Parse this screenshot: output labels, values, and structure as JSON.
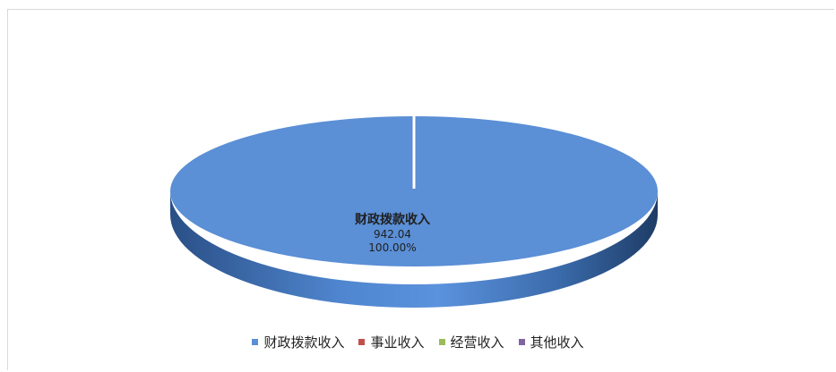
{
  "chart_data": {
    "type": "pie",
    "categories": [
      "财政拨款收入",
      "事业收入",
      "经营收入",
      "其他收入"
    ],
    "values": [
      942.04,
      0,
      0,
      0
    ],
    "percent_labels": [
      "100.00%",
      "",
      "",
      ""
    ],
    "value_labels": [
      "942.04",
      "",
      "",
      ""
    ],
    "data_label": {
      "category": "财政拨款收入",
      "value": "942.04",
      "percent": "100.00%"
    },
    "title": "",
    "legend": {
      "position": "bottom",
      "items": [
        {
          "label": "财政拨款收入",
          "color": "#5b8fd6"
        },
        {
          "label": "事业收入",
          "color": "#c0504d"
        },
        {
          "label": "经营收入",
          "color": "#9bbb59"
        },
        {
          "label": "其他收入",
          "color": "#8064a2"
        }
      ]
    },
    "style": "3d-pie"
  }
}
